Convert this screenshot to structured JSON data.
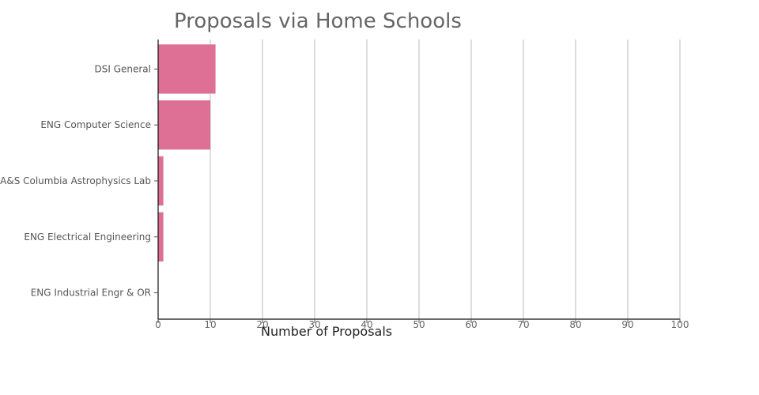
{
  "chart_data": {
    "type": "bar",
    "orientation": "horizontal",
    "title": "Proposals via Home Schools",
    "xlabel": "Number of Proposals",
    "ylabel": "",
    "categories": [
      "DSI General",
      "ENG Computer Science",
      "A&S Columbia Astrophysics Lab",
      "ENG Electrical Engineering",
      "ENG Industrial Engr & OR"
    ],
    "values": [
      11,
      10,
      1,
      1,
      0
    ],
    "xlim": [
      0,
      100
    ],
    "xticks": [
      0,
      10,
      20,
      30,
      40,
      50,
      60,
      70,
      80,
      90,
      100
    ],
    "grid": true,
    "bar_color": "#dd7094"
  }
}
